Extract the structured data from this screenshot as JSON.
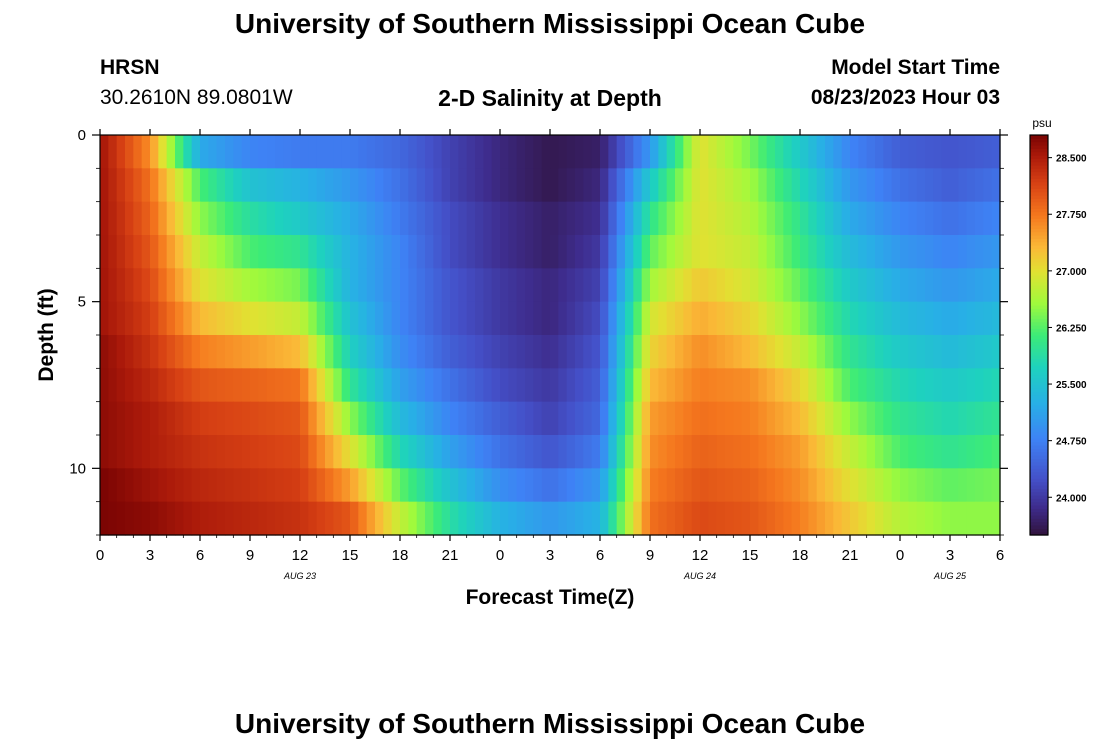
{
  "header": {
    "title": "University of Southern Mississippi Ocean Cube",
    "station": "HRSN",
    "coords": "30.2610N  89.0801W",
    "subtitle": "2-D Salinity at Depth",
    "model_label": "Model Start Time",
    "model_time": "08/23/2023 Hour 03"
  },
  "footer": {
    "title": "University of Southern Mississippi Ocean Cube"
  },
  "chart_data": {
    "type": "heatmap",
    "title": "2-D Salinity at Depth",
    "xlabel": "Forecast Time(Z)",
    "ylabel": "Depth (ft)",
    "x_tick_labels": [
      "0",
      "3",
      "6",
      "9",
      "12",
      "15",
      "18",
      "21",
      "0",
      "3",
      "6",
      "9",
      "12",
      "15",
      "18",
      "21",
      "0",
      "3",
      "6"
    ],
    "x_ticks_hours": [
      0,
      3,
      6,
      9,
      12,
      15,
      18,
      21,
      24,
      27,
      30,
      33,
      36,
      39,
      42,
      45,
      48,
      51,
      54
    ],
    "day_labels": [
      {
        "label": "AUG 23",
        "hour": 12
      },
      {
        "label": "AUG 24",
        "hour": 36
      },
      {
        "label": "AUG 25",
        "hour": 51
      }
    ],
    "xlim": [
      0,
      54
    ],
    "ylim": [
      0,
      12
    ],
    "y_inverted": true,
    "y_tick_labels": [
      "0",
      "5",
      "10"
    ],
    "y_ticks": [
      0,
      5,
      10
    ],
    "colorbar": {
      "unit": "psu",
      "range": [
        23.5,
        28.8
      ],
      "tick_labels": [
        "28.500",
        "27.750",
        "27.000",
        "26.250",
        "25.500",
        "24.750",
        "24.000"
      ],
      "ticks": [
        28.5,
        27.75,
        27.0,
        26.25,
        25.5,
        24.75,
        24.0
      ]
    },
    "depth_rows_ft": [
      0,
      1,
      2,
      3,
      4,
      5,
      6,
      7,
      8,
      9,
      10,
      11
    ],
    "time_hours": [
      0,
      3,
      6,
      9,
      12,
      15,
      18,
      21,
      24,
      27,
      30,
      33,
      36,
      39,
      42,
      45,
      48,
      51,
      54
    ],
    "salinity_psu": [
      [
        28.6,
        27.6,
        25.2,
        24.8,
        24.7,
        24.7,
        24.5,
        24.1,
        23.8,
        23.6,
        23.7,
        25.0,
        27.0,
        26.4,
        25.6,
        24.8,
        24.4,
        24.3,
        24.4
      ],
      [
        28.6,
        27.8,
        26.2,
        25.5,
        25.3,
        25.0,
        24.6,
        24.1,
        23.8,
        23.6,
        23.8,
        25.6,
        27.0,
        26.6,
        25.8,
        25.0,
        24.6,
        24.4,
        24.6
      ],
      [
        28.6,
        27.9,
        26.5,
        25.9,
        25.6,
        25.2,
        24.7,
        24.2,
        23.9,
        23.7,
        23.9,
        26.0,
        27.0,
        26.7,
        26.0,
        25.2,
        24.8,
        24.6,
        24.8
      ],
      [
        28.6,
        28.0,
        26.8,
        26.2,
        26.0,
        25.3,
        24.8,
        24.2,
        23.9,
        23.7,
        24.0,
        26.3,
        27.0,
        26.8,
        26.1,
        25.4,
        25.0,
        24.8,
        25.0
      ],
      [
        28.6,
        28.1,
        27.0,
        26.6,
        26.4,
        25.3,
        24.8,
        24.3,
        24.0,
        23.8,
        24.1,
        26.6,
        27.2,
        26.9,
        26.3,
        25.6,
        25.2,
        25.0,
        25.2
      ],
      [
        28.6,
        28.2,
        27.3,
        27.0,
        26.8,
        25.5,
        24.8,
        24.3,
        24.0,
        23.8,
        24.2,
        26.9,
        27.4,
        27.1,
        26.5,
        25.8,
        25.4,
        25.2,
        25.4
      ],
      [
        28.7,
        28.3,
        27.7,
        27.5,
        27.3,
        25.7,
        24.9,
        24.4,
        24.1,
        23.9,
        24.3,
        27.1,
        27.6,
        27.3,
        26.8,
        26.0,
        25.6,
        25.4,
        25.6
      ],
      [
        28.7,
        28.4,
        28.0,
        27.9,
        27.8,
        26.0,
        25.1,
        24.6,
        24.2,
        24.0,
        24.4,
        27.3,
        27.7,
        27.6,
        27.1,
        26.2,
        25.8,
        25.6,
        25.8
      ],
      [
        28.7,
        28.5,
        28.2,
        28.1,
        28.0,
        26.5,
        25.4,
        24.8,
        24.4,
        24.1,
        24.5,
        27.5,
        27.8,
        27.7,
        27.3,
        26.5,
        26.0,
        25.8,
        26.0
      ],
      [
        28.7,
        28.5,
        28.3,
        28.2,
        28.1,
        27.0,
        25.8,
        25.1,
        24.6,
        24.3,
        24.7,
        27.6,
        27.9,
        27.8,
        27.5,
        26.8,
        26.2,
        26.0,
        26.2
      ],
      [
        28.8,
        28.6,
        28.4,
        28.3,
        28.2,
        27.5,
        26.3,
        25.5,
        24.9,
        24.6,
        25.0,
        27.7,
        28.0,
        27.9,
        27.6,
        27.0,
        26.5,
        26.3,
        26.4
      ],
      [
        28.8,
        28.7,
        28.5,
        28.4,
        28.3,
        28.0,
        26.8,
        25.9,
        25.3,
        25.0,
        25.3,
        27.8,
        28.1,
        28.0,
        27.7,
        27.2,
        26.7,
        26.5,
        26.5
      ]
    ]
  }
}
